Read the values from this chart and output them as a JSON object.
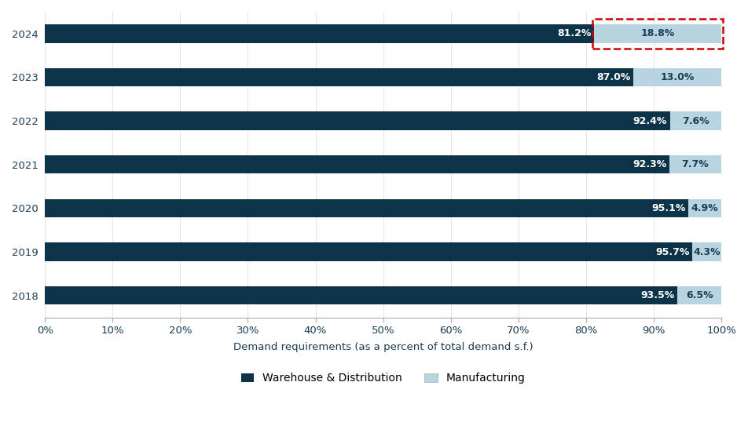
{
  "years": [
    "2024",
    "2023",
    "2022",
    "2021",
    "2020",
    "2019",
    "2018"
  ],
  "warehouse": [
    81.2,
    87.0,
    92.4,
    92.3,
    95.1,
    95.7,
    93.5
  ],
  "manufacturing": [
    18.8,
    13.0,
    7.6,
    7.7,
    4.9,
    4.3,
    6.5
  ],
  "warehouse_color": "#0d3349",
  "manufacturing_color": "#b8d4e0",
  "bar_height": 0.42,
  "xlabel": "Demand requirements (as a percent of total demand s.f.)",
  "legend_warehouse": "Warehouse & Distribution",
  "legend_manufacturing": "Manufacturing",
  "xlim": [
    0,
    100
  ],
  "xticks": [
    0,
    10,
    20,
    30,
    40,
    50,
    60,
    70,
    80,
    90,
    100
  ],
  "xtick_labels": [
    "0%",
    "10%",
    "20%",
    "30%",
    "40%",
    "50%",
    "60%",
    "70%",
    "80%",
    "90%",
    "100%"
  ],
  "highlight_color": "#cc0000",
  "background_color": "#ffffff",
  "wh_label_color": "#ffffff",
  "mfg_label_color_2024": "#1a3d52",
  "mfg_label_color_other": "#1a3d52",
  "font_size_bar": 9.0,
  "font_size_axis": 9.5,
  "font_size_legend": 10,
  "axis_label_color": "#1a3d52",
  "tick_label_color": "#1a3d52",
  "year_label_color": "#1a3d52"
}
